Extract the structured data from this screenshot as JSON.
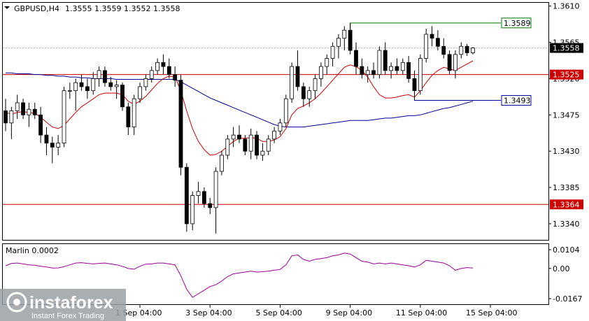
{
  "header": {
    "symbol": "GBPUSD,H4",
    "ohlc": "1.3555 1.3559 1.3552 1.3558"
  },
  "indicator": {
    "title": "Marlin 0.0002",
    "ticks": [
      "0.0104",
      "0.00",
      "-0.0167"
    ],
    "color": "#990099"
  },
  "watermark": {
    "brand": "instaforex",
    "tagline": "Instant Forex Trading"
  },
  "chart_data": {
    "type": "candlestick",
    "symbol": "GBPUSD",
    "timeframe": "H4",
    "price_ticks": [
      "1.3610",
      "1.3565",
      "1.3520",
      "1.3475",
      "1.3430",
      "1.3385",
      "1.3340"
    ],
    "time_ticks": [
      "1 Sep 04:00",
      "3 Sep 04:00",
      "5 Sep 04:00",
      "9 Sep 04:00",
      "11 Sep 04:00",
      "15 Sep 04:00"
    ],
    "ylim": [
      1.332,
      1.3614
    ],
    "current_price": "1.3558",
    "levels": [
      {
        "value": "1.3525",
        "color": "#cc0000"
      },
      {
        "value": "1.3364",
        "color": "#cc0000"
      }
    ],
    "ranges": [
      {
        "value": "1.3589",
        "color": "#007700"
      },
      {
        "value": "1.3493",
        "color": "#000099"
      }
    ],
    "candles": [
      [
        1.348,
        1.3495,
        1.3455,
        1.3465
      ],
      [
        1.3465,
        1.3485,
        1.3445,
        1.348
      ],
      [
        1.348,
        1.35,
        1.347,
        1.349
      ],
      [
        1.349,
        1.3495,
        1.347,
        1.3475
      ],
      [
        1.3475,
        1.349,
        1.346,
        1.3482
      ],
      [
        1.3482,
        1.349,
        1.347,
        1.3475
      ],
      [
        1.3475,
        1.3485,
        1.344,
        1.345
      ],
      [
        1.345,
        1.346,
        1.3425,
        1.344
      ],
      [
        1.344,
        1.3448,
        1.3415,
        1.3435
      ],
      [
        1.3435,
        1.345,
        1.3425,
        1.344
      ],
      [
        1.344,
        1.351,
        1.3435,
        1.3505
      ],
      [
        1.3505,
        1.3515,
        1.3495,
        1.3505
      ],
      [
        1.3505,
        1.352,
        1.348,
        1.3515
      ],
      [
        1.3515,
        1.3525,
        1.3505,
        1.351
      ],
      [
        1.351,
        1.352,
        1.3495,
        1.3505
      ],
      [
        1.3505,
        1.3528,
        1.35,
        1.352
      ],
      [
        1.352,
        1.3535,
        1.351,
        1.353
      ],
      [
        1.353,
        1.3535,
        1.351,
        1.3515
      ],
      [
        1.3515,
        1.3522,
        1.3505,
        1.351
      ],
      [
        1.351,
        1.3518,
        1.3495,
        1.3512
      ],
      [
        1.3512,
        1.3515,
        1.348,
        1.3485
      ],
      [
        1.3485,
        1.349,
        1.345,
        1.346
      ],
      [
        1.346,
        1.35,
        1.345,
        1.3495
      ],
      [
        1.3495,
        1.3515,
        1.349,
        1.351
      ],
      [
        1.351,
        1.3525,
        1.3505,
        1.352
      ],
      [
        1.352,
        1.3535,
        1.3515,
        1.353
      ],
      [
        1.353,
        1.3545,
        1.3525,
        1.354
      ],
      [
        1.354,
        1.355,
        1.3525,
        1.3535
      ],
      [
        1.3535,
        1.3545,
        1.352,
        1.3525
      ],
      [
        1.3525,
        1.3535,
        1.351,
        1.3518
      ],
      [
        1.3518,
        1.3525,
        1.34,
        1.341
      ],
      [
        1.341,
        1.3415,
        1.333,
        1.334
      ],
      [
        1.334,
        1.338,
        1.3332,
        1.3375
      ],
      [
        1.3375,
        1.3392,
        1.3365,
        1.338
      ],
      [
        1.338,
        1.3385,
        1.336,
        1.3365
      ],
      [
        1.3365,
        1.3372,
        1.3352,
        1.336
      ],
      [
        1.336,
        1.341,
        1.3328,
        1.3405
      ],
      [
        1.3405,
        1.343,
        1.34,
        1.3425
      ],
      [
        1.3425,
        1.345,
        1.342,
        1.3445
      ],
      [
        1.3445,
        1.346,
        1.3435,
        1.345
      ],
      [
        1.345,
        1.3462,
        1.344,
        1.3445
      ],
      [
        1.3445,
        1.345,
        1.3425,
        1.343
      ],
      [
        1.343,
        1.3458,
        1.342,
        1.345
      ],
      [
        1.345,
        1.3455,
        1.342,
        1.3425
      ],
      [
        1.3425,
        1.344,
        1.3418,
        1.343
      ],
      [
        1.343,
        1.345,
        1.3425,
        1.3445
      ],
      [
        1.3445,
        1.346,
        1.344,
        1.3455
      ],
      [
        1.3455,
        1.347,
        1.345,
        1.3465
      ],
      [
        1.3465,
        1.35,
        1.346,
        1.3495
      ],
      [
        1.3495,
        1.354,
        1.349,
        1.3535
      ],
      [
        1.3535,
        1.3555,
        1.3505,
        1.351
      ],
      [
        1.351,
        1.3515,
        1.3485,
        1.3495
      ],
      [
        1.3495,
        1.351,
        1.3485,
        1.3505
      ],
      [
        1.3505,
        1.3525,
        1.3495,
        1.352
      ],
      [
        1.352,
        1.354,
        1.351,
        1.3535
      ],
      [
        1.3535,
        1.355,
        1.3525,
        1.3545
      ],
      [
        1.3545,
        1.3565,
        1.3535,
        1.356
      ],
      [
        1.356,
        1.3575,
        1.3545,
        1.357
      ],
      [
        1.357,
        1.3585,
        1.3555,
        1.358
      ],
      [
        1.358,
        1.3589,
        1.355,
        1.3555
      ],
      [
        1.3555,
        1.3565,
        1.3525,
        1.3535
      ],
      [
        1.3535,
        1.3545,
        1.352,
        1.3525
      ],
      [
        1.3525,
        1.3535,
        1.3515,
        1.353
      ],
      [
        1.353,
        1.354,
        1.352,
        1.3525
      ],
      [
        1.3525,
        1.356,
        1.352,
        1.3555
      ],
      [
        1.3555,
        1.3565,
        1.3525,
        1.353
      ],
      [
        1.353,
        1.354,
        1.352,
        1.3535
      ],
      [
        1.3535,
        1.3545,
        1.3525,
        1.353
      ],
      [
        1.353,
        1.3545,
        1.3525,
        1.354
      ],
      [
        1.354,
        1.3548,
        1.3515,
        1.352
      ],
      [
        1.352,
        1.353,
        1.3493,
        1.3505
      ],
      [
        1.3505,
        1.355,
        1.35,
        1.3545
      ],
      [
        1.3545,
        1.3582,
        1.354,
        1.3575
      ],
      [
        1.3575,
        1.3585,
        1.356,
        1.357
      ],
      [
        1.357,
        1.358,
        1.3555,
        1.356
      ],
      [
        1.356,
        1.357,
        1.3545,
        1.355
      ],
      [
        1.355,
        1.3555,
        1.3525,
        1.353
      ],
      [
        1.353,
        1.3555,
        1.352,
        1.355
      ],
      [
        1.355,
        1.3565,
        1.3545,
        1.356
      ],
      [
        1.356,
        1.3563,
        1.3548,
        1.3552
      ],
      [
        1.3552,
        1.3559,
        1.355,
        1.3558
      ]
    ],
    "ma_fast": [
      1.3478,
      1.3476,
      1.3478,
      1.3479,
      1.3478,
      1.3477,
      1.3472,
      1.3466,
      1.346,
      1.3458,
      1.3462,
      1.347,
      1.3478,
      1.3485,
      1.349,
      1.3495,
      1.35,
      1.3502,
      1.3502,
      1.3502,
      1.35,
      1.3492,
      1.3488,
      1.3492,
      1.3498,
      1.3506,
      1.3514,
      1.352,
      1.3523,
      1.3522,
      1.3505,
      1.348,
      1.3458,
      1.3442,
      1.3432,
      1.3425,
      1.3426,
      1.343,
      1.3436,
      1.3442,
      1.3446,
      1.3446,
      1.3447,
      1.3446,
      1.3442,
      1.3442,
      1.3444,
      1.3448,
      1.3458,
      1.3475,
      1.3483,
      1.3486,
      1.349,
      1.3495,
      1.3502,
      1.351,
      1.3518,
      1.3526,
      1.3534,
      1.3537,
      1.3535,
      1.353,
      1.3522,
      1.351,
      1.35,
      1.3496,
      1.3496,
      1.3497,
      1.3499,
      1.35,
      1.3497,
      1.3505,
      1.3515,
      1.3524,
      1.353,
      1.3534,
      1.3532,
      1.353,
      1.3534,
      1.3538,
      1.3542
    ],
    "ma_slow": [
      1.3527,
      1.3527,
      1.3526,
      1.3526,
      1.3526,
      1.3525,
      1.3525,
      1.3524,
      1.3524,
      1.3523,
      1.3523,
      1.3522,
      1.3522,
      1.3521,
      1.3521,
      1.352,
      1.352,
      1.352,
      1.352,
      1.3519,
      1.3519,
      1.3519,
      1.3519,
      1.3519,
      1.3519,
      1.3519,
      1.3519,
      1.3519,
      1.3519,
      1.3519,
      1.3516,
      1.3512,
      1.3508,
      1.3504,
      1.35,
      1.3496,
      1.3493,
      1.349,
      1.3487,
      1.3484,
      1.3481,
      1.3478,
      1.3475,
      1.3472,
      1.3469,
      1.3466,
      1.3463,
      1.3461,
      1.346,
      1.346,
      1.346,
      1.346,
      1.3461,
      1.3462,
      1.3463,
      1.3464,
      1.3465,
      1.3466,
      1.3467,
      1.3468,
      1.3468,
      1.3468,
      1.3468,
      1.3469,
      1.347,
      1.3471,
      1.3471,
      1.3472,
      1.3473,
      1.3474,
      1.3474,
      1.3475,
      1.3477,
      1.3479,
      1.3481,
      1.3483,
      1.3484,
      1.3486,
      1.3488,
      1.349,
      1.3492
    ],
    "oscillator": [
      0.0015,
      0.0028,
      0.003,
      0.0025,
      0.002,
      0.0018,
      0.0012,
      0.0008,
      0.0002,
      0.0003,
      0.001,
      0.002,
      0.003,
      0.0032,
      0.0028,
      0.0025,
      0.0028,
      0.003,
      0.0025,
      0.002,
      0.0012,
      0.0,
      -0.0004,
      0.0012,
      0.0024,
      0.0025,
      0.003,
      0.003,
      0.0025,
      0.002,
      -0.004,
      -0.0115,
      -0.016,
      -0.014,
      -0.012,
      -0.01,
      -0.009,
      -0.007,
      -0.0045,
      -0.003,
      -0.0025,
      -0.002,
      -0.0015,
      -0.002,
      -0.0018,
      -0.0015,
      -0.001,
      -0.0005,
      0.002,
      0.007,
      0.0075,
      0.005,
      0.004,
      0.005,
      0.0055,
      0.006,
      0.007,
      0.0075,
      0.0085,
      0.008,
      0.006,
      0.004,
      0.0035,
      0.0025,
      0.003,
      0.0025,
      0.003,
      0.0025,
      0.002,
      0.0015,
      0.0008,
      0.002,
      0.0045,
      0.004,
      0.0035,
      0.003,
      0.0015,
      -0.001,
      0.0,
      0.0005,
      0.0002
    ]
  }
}
